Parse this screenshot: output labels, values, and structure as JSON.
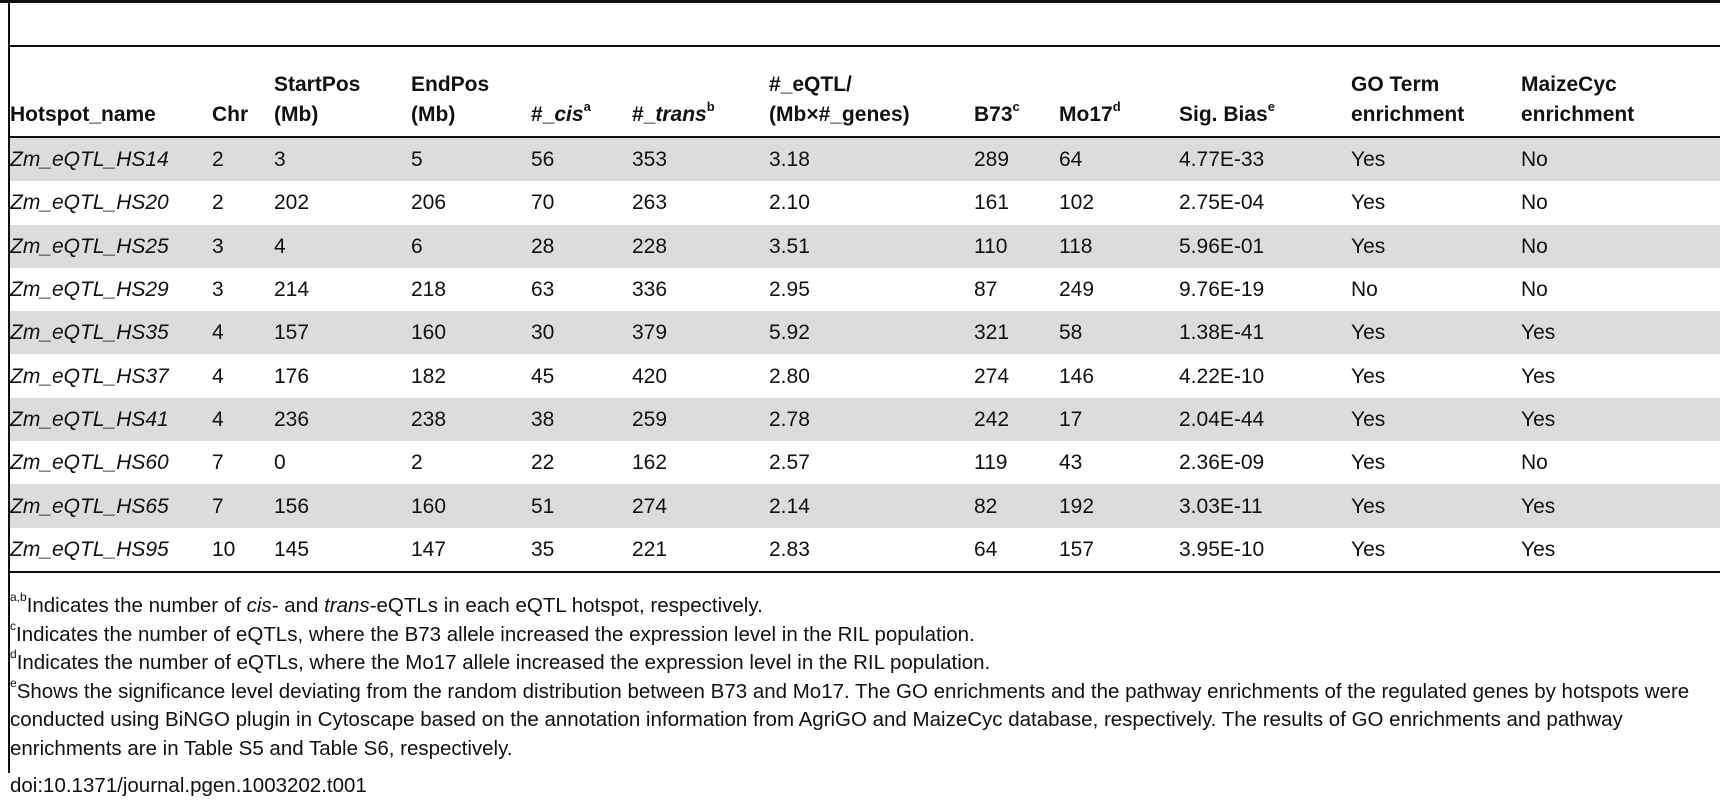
{
  "table": {
    "headers": [
      {
        "main": "Hotspot_name",
        "sup": ""
      },
      {
        "main": "Chr",
        "sup": ""
      },
      {
        "main": "StartPos (Mb)",
        "sup": ""
      },
      {
        "main": "EndPos (Mb)",
        "sup": ""
      },
      {
        "main": "#_cis",
        "sup": "a"
      },
      {
        "main": "#_trans",
        "sup": "b"
      },
      {
        "main": "#_eQTL/ (Mb×#_genes)",
        "sup": ""
      },
      {
        "main": "B73",
        "sup": "c"
      },
      {
        "main": "Mo17",
        "sup": "d"
      },
      {
        "main": "Sig. Bias",
        "sup": "e"
      },
      {
        "main": "GO Term enrichment",
        "sup": ""
      },
      {
        "main": "MaizeCyc enrichment",
        "sup": ""
      }
    ],
    "header_parts": {
      "hotspot": "Hotspot_name",
      "chr": "Chr",
      "start_l1": "StartPos",
      "start_l2": "(Mb)",
      "end_l1": "EndPos",
      "end_l2": "(Mb)",
      "cis_prefix": "#_",
      "cis_it": "cis",
      "cis_sup": "a",
      "trans_prefix": "#_",
      "trans_it": "trans",
      "trans_sup": "b",
      "eqtl_l1": "#_eQTL/",
      "eqtl_l2": "(Mb×#_genes)",
      "b73": "B73",
      "b73_sup": "c",
      "mo17": "Mo17",
      "mo17_sup": "d",
      "sig": "Sig. Bias",
      "sig_sup": "e",
      "go_l1": "GO Term",
      "go_l2": "enrichment",
      "maize_l1": "MaizeCyc",
      "maize_l2": "enrichment"
    },
    "rows": [
      [
        "Zm_eQTL_HS14",
        "2",
        "3",
        "5",
        "56",
        "353",
        "3.18",
        "289",
        "64",
        "4.77E-33",
        "Yes",
        "No"
      ],
      [
        "Zm_eQTL_HS20",
        "2",
        "202",
        "206",
        "70",
        "263",
        "2.10",
        "161",
        "102",
        "2.75E-04",
        "Yes",
        "No"
      ],
      [
        "Zm_eQTL_HS25",
        "3",
        "4",
        "6",
        "28",
        "228",
        "3.51",
        "110",
        "118",
        "5.96E-01",
        "Yes",
        "No"
      ],
      [
        "Zm_eQTL_HS29",
        "3",
        "214",
        "218",
        "63",
        "336",
        "2.95",
        "87",
        "249",
        "9.76E-19",
        "No",
        "No"
      ],
      [
        "Zm_eQTL_HS35",
        "4",
        "157",
        "160",
        "30",
        "379",
        "5.92",
        "321",
        "58",
        "1.38E-41",
        "Yes",
        "Yes"
      ],
      [
        "Zm_eQTL_HS37",
        "4",
        "176",
        "182",
        "45",
        "420",
        "2.80",
        "274",
        "146",
        "4.22E-10",
        "Yes",
        "Yes"
      ],
      [
        "Zm_eQTL_HS41",
        "4",
        "236",
        "238",
        "38",
        "259",
        "2.78",
        "242",
        "17",
        "2.04E-44",
        "Yes",
        "Yes"
      ],
      [
        "Zm_eQTL_HS60",
        "7",
        "0",
        "2",
        "22",
        "162",
        "2.57",
        "119",
        "43",
        "2.36E-09",
        "Yes",
        "No"
      ],
      [
        "Zm_eQTL_HS65",
        "7",
        "156",
        "160",
        "51",
        "274",
        "2.14",
        "82",
        "192",
        "3.03E-11",
        "Yes",
        "Yes"
      ],
      [
        "Zm_eQTL_HS95",
        "10",
        "145",
        "147",
        "35",
        "221",
        "2.83",
        "64",
        "157",
        "3.95E-10",
        "Yes",
        "Yes"
      ]
    ]
  },
  "footnotes": {
    "ab": {
      "sup": "a,b",
      "t1": "Indicates the number of ",
      "it1": "cis",
      "t2": "- and ",
      "it2": "trans",
      "t3": "-eQTLs in each eQTL hotspot, respectively."
    },
    "c": {
      "sup": "c",
      "text": "Indicates the number of eQTLs, where the B73 allele increased the expression level in the RIL population."
    },
    "d": {
      "sup": "d",
      "text": "Indicates the number of eQTLs, where the Mo17 allele increased the expression level in the RIL population."
    },
    "e": {
      "sup": "e",
      "text": "Shows the significance level deviating from the random distribution between B73 and Mo17. The GO enrichments and the pathway enrichments of the regulated genes by hotspots were conducted using BiNGO plugin in Cytoscape based on the annotation information from AgriGO and MaizeCyc database, respectively. The results of GO enrichments and pathway enrichments are in Table S5 and Table S6, respectively."
    }
  },
  "doi": "doi:10.1371/journal.pgen.1003202.t001"
}
